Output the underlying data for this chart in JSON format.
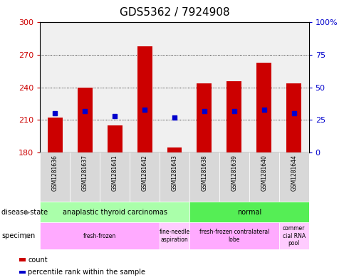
{
  "title": "GDS5362 / 7924908",
  "samples": [
    "GSM1281636",
    "GSM1281637",
    "GSM1281641",
    "GSM1281642",
    "GSM1281643",
    "GSM1281638",
    "GSM1281639",
    "GSM1281640",
    "GSM1281644"
  ],
  "counts": [
    212,
    240,
    205,
    278,
    185,
    244,
    246,
    263,
    244
  ],
  "percentile_ranks": [
    30,
    32,
    28,
    33,
    27,
    32,
    32,
    33,
    30
  ],
  "ymin": 180,
  "ymax": 300,
  "yticks": [
    180,
    210,
    240,
    270,
    300
  ],
  "right_yticks": [
    0,
    25,
    50,
    75,
    100
  ],
  "disease_state": [
    {
      "label": "anaplastic thyroid carcinomas",
      "start": 0,
      "end": 5,
      "color": "#aaffaa"
    },
    {
      "label": "normal",
      "start": 5,
      "end": 9,
      "color": "#55ee55"
    }
  ],
  "specimen": [
    {
      "label": "fresh-frozen",
      "start": 0,
      "end": 4,
      "color": "#ffaaff"
    },
    {
      "label": "fine-needle\naspiration",
      "start": 4,
      "end": 5,
      "color": "#ffccff"
    },
    {
      "label": "fresh-frozen contralateral\nlobe",
      "start": 5,
      "end": 8,
      "color": "#ffaaff"
    },
    {
      "label": "commer\ncial RNA\npool",
      "start": 8,
      "end": 9,
      "color": "#ffccff"
    }
  ],
  "bar_color": "#cc0000",
  "dot_color": "#0000cc",
  "bar_width": 0.5,
  "background_color": "#ffffff",
  "tick_label_color_left": "#cc0000",
  "tick_label_color_right": "#0000cc",
  "plot_bg": "#f0f0f0",
  "title_fontsize": 11
}
